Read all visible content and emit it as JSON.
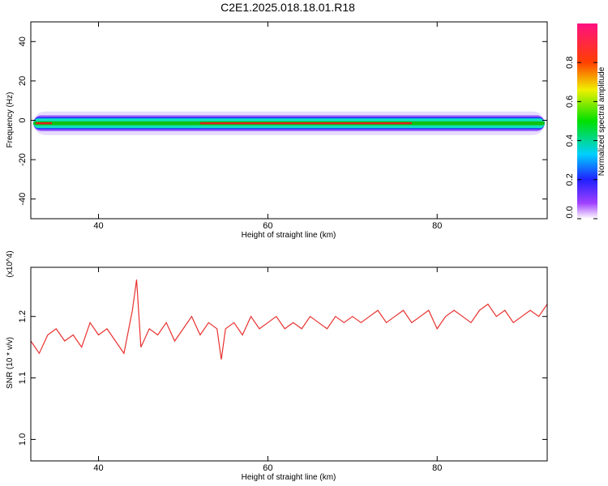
{
  "title": "C2E1.2025.018.18.01.R18",
  "colors": {
    "snr_line": "#e8312f",
    "frame": "#000000",
    "background": "#ffffff"
  },
  "chart_data": [
    {
      "type": "heatmap",
      "xlabel": "Height of straight line (km)",
      "ylabel": "Frequency (Hz)",
      "xlim": [
        32,
        93
      ],
      "ylim": [
        -50,
        50
      ],
      "xticks": [
        40,
        60,
        80
      ],
      "xtick_labels": [
        "40",
        "60",
        "80"
      ],
      "yticks": [
        -40,
        -20,
        0,
        20,
        40
      ],
      "ytick_labels": [
        "-40",
        "-20",
        "0",
        "20",
        "40"
      ],
      "colorbar": {
        "label": "Normalized spectral amplitude",
        "range": [
          0,
          1
        ],
        "ticks": [
          0.0,
          0.2,
          0.4,
          0.6,
          0.8
        ],
        "tick_labels": [
          "0.0",
          "0.2",
          "0.4",
          "0.6",
          "0.8"
        ],
        "colormap": "rainbow"
      },
      "band": {
        "center_hz": -1.5,
        "core_halfwidth_hz": 1.0,
        "mid_halfwidth_hz": 2.5,
        "outer_halfwidth_hz": 4.0,
        "halo_halfwidth_hz": 6.0,
        "peak_amplitude_range_km": [
          52,
          77
        ]
      }
    },
    {
      "type": "line",
      "xlabel": "Height of straight line (km)",
      "ylabel": "SNR (10 * v/v)",
      "y_multiplier": "(x10^4)",
      "xlim": [
        32,
        93
      ],
      "ylim": [
        0.965,
        1.28
      ],
      "xticks": [
        40,
        60,
        80
      ],
      "xtick_labels": [
        "40",
        "60",
        "80"
      ],
      "yticks": [
        1.0,
        1.1,
        1.2
      ],
      "ytick_labels": [
        "1.0",
        "1.1",
        "1.2"
      ],
      "series": [
        {
          "color": "#e8312f",
          "x": [
            32,
            33,
            34,
            35,
            36,
            37,
            38,
            39,
            40,
            41,
            42,
            43,
            44,
            44.5,
            45,
            46,
            47,
            48,
            49,
            50,
            51,
            52,
            53,
            54,
            54.5,
            55,
            56,
            57,
            58,
            59,
            60,
            61,
            62,
            63,
            64,
            65,
            66,
            67,
            68,
            69,
            70,
            71,
            72,
            73,
            74,
            75,
            76,
            77,
            78,
            79,
            80,
            81,
            82,
            83,
            84,
            85,
            86,
            87,
            88,
            89,
            90,
            91,
            92,
            93
          ],
          "y": [
            1.16,
            1.14,
            1.17,
            1.18,
            1.16,
            1.17,
            1.15,
            1.19,
            1.17,
            1.18,
            1.16,
            1.14,
            1.21,
            1.26,
            1.15,
            1.18,
            1.17,
            1.19,
            1.16,
            1.18,
            1.2,
            1.17,
            1.19,
            1.18,
            1.13,
            1.18,
            1.19,
            1.17,
            1.2,
            1.18,
            1.19,
            1.2,
            1.18,
            1.19,
            1.18,
            1.2,
            1.19,
            1.18,
            1.2,
            1.19,
            1.2,
            1.19,
            1.2,
            1.21,
            1.19,
            1.2,
            1.21,
            1.19,
            1.2,
            1.21,
            1.18,
            1.2,
            1.21,
            1.2,
            1.19,
            1.21,
            1.22,
            1.2,
            1.21,
            1.19,
            1.2,
            1.21,
            1.2,
            1.22
          ]
        }
      ]
    }
  ]
}
